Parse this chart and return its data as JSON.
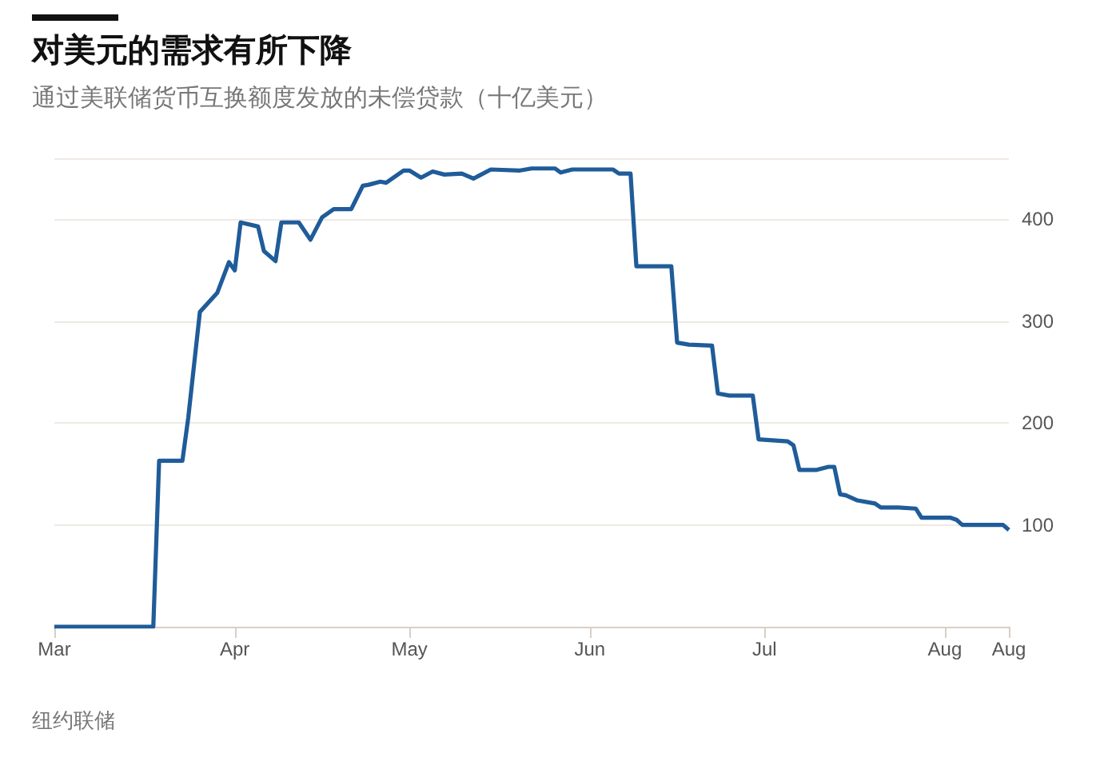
{
  "chart_data": {
    "type": "line",
    "title": "对美元的需求有所下降",
    "subtitle": "通过美联储货币互换额度发放的未偿贷款（十亿美元）",
    "x": [
      "--03-01",
      "--03-18",
      "--03-19",
      "--03-23",
      "--03-24",
      "--03-26",
      "--03-29",
      "--03-31",
      "--04-01",
      "--04-02",
      "--04-05",
      "--04-06",
      "--04-08",
      "--04-09",
      "--04-12",
      "--04-14",
      "--04-16",
      "--04-18",
      "--04-21",
      "--04-23",
      "--04-24",
      "--04-26",
      "--04-27",
      "--04-30",
      "--05-01",
      "--05-03",
      "--05-05",
      "--05-07",
      "--05-10",
      "--05-12",
      "--05-13",
      "--05-15",
      "--05-20",
      "--05-22",
      "--05-26",
      "--05-27",
      "--05-29",
      "--06-05",
      "--06-06",
      "--06-08",
      "--06-09",
      "--06-15",
      "--06-16",
      "--06-18",
      "--06-22",
      "--06-23",
      "--06-25",
      "--06-29",
      "--06-30",
      "--07-05",
      "--07-06",
      "--07-07",
      "--07-10",
      "--07-12",
      "--07-13",
      "--07-14",
      "--07-15",
      "--07-17",
      "--07-20",
      "--07-21",
      "--07-24",
      "--07-27",
      "--07-28",
      "--08-02",
      "--08-03",
      "--08-04",
      "--08-11",
      "--08-12"
    ],
    "series": [
      {
        "color": "#1f5c99",
        "values": [
          0,
          0,
          163,
          163,
          205,
          309,
          328,
          358,
          350,
          397,
          393,
          369,
          359,
          397,
          397,
          380,
          402,
          410,
          410,
          433,
          434,
          437,
          436,
          448,
          448,
          441,
          447,
          444,
          445,
          440,
          443,
          449,
          448,
          450,
          450,
          446,
          449,
          449,
          445,
          445,
          354,
          354,
          279,
          277,
          276,
          229,
          227,
          227,
          184,
          182,
          178,
          154,
          154,
          157,
          157,
          130,
          129,
          124,
          121,
          117,
          117,
          116,
          107,
          107,
          105,
          100,
          100,
          95
        ]
      }
    ],
    "xlim": [
      "--03-01",
      "--08-12"
    ],
    "xticks": [
      {
        "value": "--03-01",
        "label": "Mar"
      },
      {
        "value": "--04-01",
        "label": "Apr"
      },
      {
        "value": "--05-01",
        "label": "May"
      },
      {
        "value": "--06-01",
        "label": "Jun"
      },
      {
        "value": "--07-01",
        "label": "Jul"
      },
      {
        "value": "--08-01",
        "label": "Aug"
      },
      {
        "value": "--08-12",
        "label": "Aug"
      }
    ],
    "ylim": [
      0,
      460
    ],
    "yticks": [
      100,
      200,
      300,
      400
    ],
    "grid": "y",
    "annotations": [
      "纽约联储"
    ]
  }
}
